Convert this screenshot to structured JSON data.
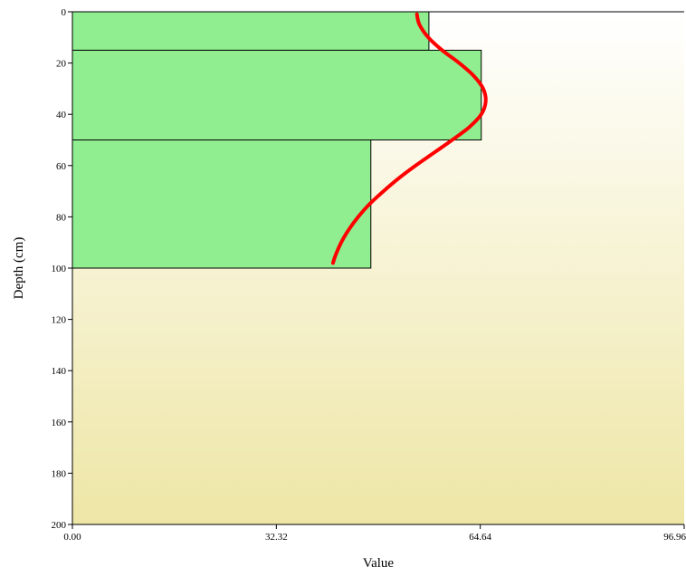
{
  "chart_data": {
    "type": "bar",
    "orientation": "horizontal-depth",
    "xlabel": "Value",
    "ylabel": "Depth (cm)",
    "xlim": [
      0,
      96.96
    ],
    "ylim": [
      0,
      200
    ],
    "y_inverted": true,
    "x_ticks": [
      "0.00",
      "32.32",
      "64.64",
      "96.96"
    ],
    "x_tick_values": [
      0,
      32.32,
      64.64,
      96.96
    ],
    "y_ticks": [
      "0",
      "20",
      "40",
      "60",
      "80",
      "100",
      "120",
      "140",
      "160",
      "180",
      "200"
    ],
    "y_tick_values": [
      0,
      20,
      40,
      60,
      80,
      100,
      120,
      140,
      160,
      180,
      200
    ],
    "bars": [
      {
        "depth_top": 0,
        "depth_bottom": 15,
        "value": 56.5
      },
      {
        "depth_top": 15,
        "depth_bottom": 50,
        "value": 64.8
      },
      {
        "depth_top": 50,
        "depth_bottom": 100,
        "value": 47.3
      }
    ],
    "curve": {
      "depth": [
        1,
        5,
        10,
        15,
        20,
        25,
        30,
        35,
        40,
        45,
        50,
        55,
        60,
        65,
        70,
        75,
        80,
        85,
        90,
        95,
        98
      ],
      "value": [
        54.6,
        55.0,
        56.4,
        58.6,
        61.3,
        63.6,
        65.1,
        65.5,
        64.8,
        62.9,
        60.2,
        57.3,
        54.4,
        51.7,
        49.3,
        47.1,
        45.3,
        43.8,
        42.6,
        41.7,
        41.3
      ]
    },
    "colors": {
      "bar_fill": "#90EE90",
      "bar_stroke": "#000000",
      "curve": "#FF0000",
      "background_top": "#FFFFFF",
      "background_bottom": "#EEE6A6"
    },
    "grid": false
  }
}
